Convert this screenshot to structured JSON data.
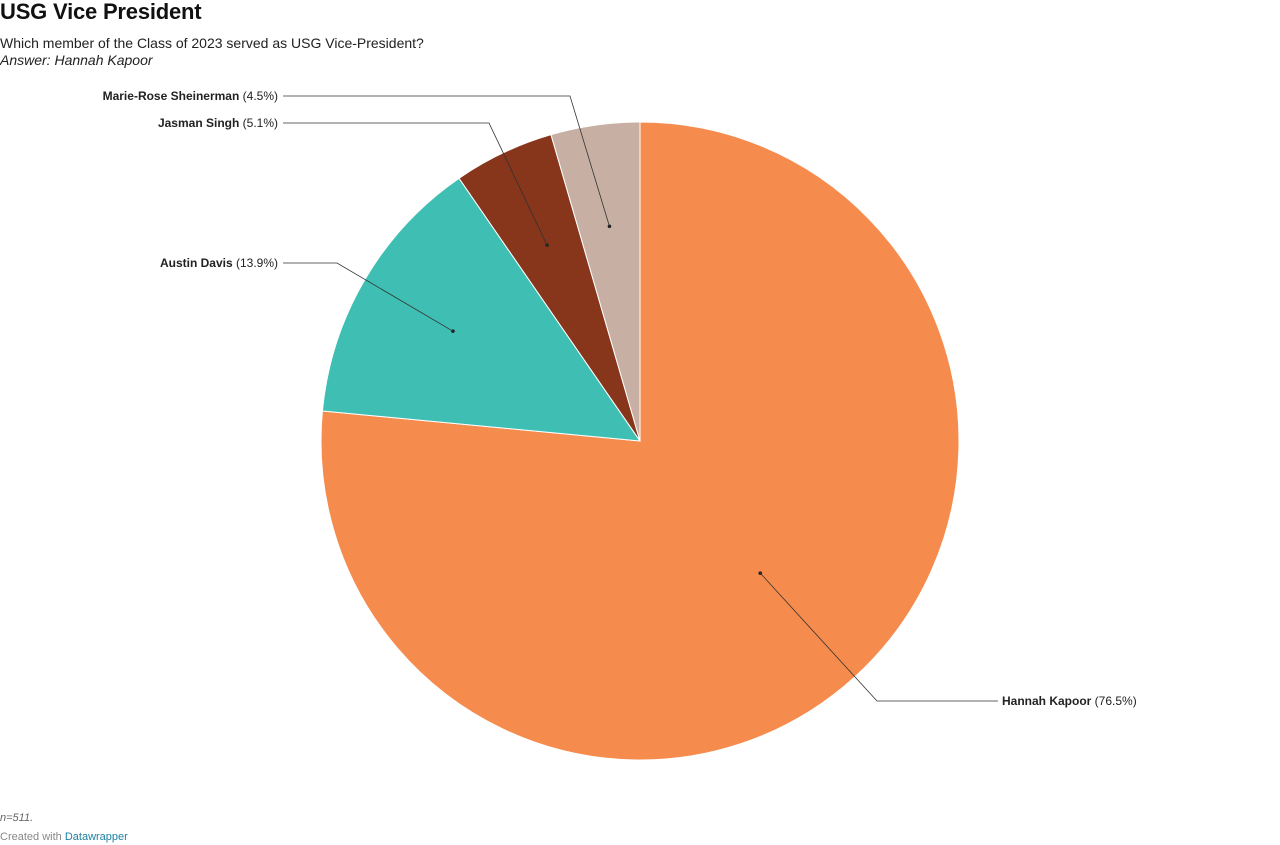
{
  "header": {
    "title": "USG Vice President",
    "subtitle": "Which member of the Class of 2023 served as USG Vice-President?",
    "answer": "Answer: Hannah Kapoor"
  },
  "footer": {
    "note": "n=511.",
    "credit_prefix": "Created with",
    "credit_link": "Datawrapper"
  },
  "chart_data": {
    "type": "pie",
    "slices": [
      {
        "label": "Hannah Kapoor",
        "value": 76.5,
        "display": "(76.5%)",
        "color": "#f58b4c"
      },
      {
        "label": "Austin Davis",
        "value": 13.9,
        "display": "(13.9%)",
        "color": "#3fbeb3"
      },
      {
        "label": "Jasman Singh",
        "value": 5.1,
        "display": "(5.1%)",
        "color": "#87351b"
      },
      {
        "label": "Marie-Rose Sheinerman",
        "value": 4.5,
        "display": "(4.5%)",
        "color": "#c7b0a3"
      }
    ],
    "start_angle_deg": 0,
    "direction": "clockwise"
  }
}
